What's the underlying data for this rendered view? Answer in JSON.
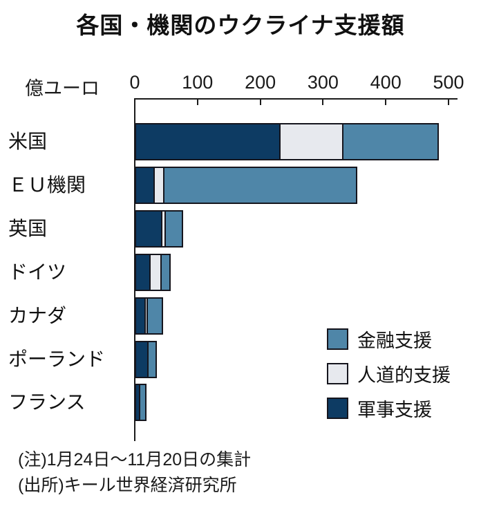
{
  "title": "各国・機関のウクライナ支援額",
  "axis_unit_label": "億ユーロ",
  "notes": {
    "note1": "(注)1月24日～11月20日の集計",
    "note2": "(出所)キール世界経済研究所"
  },
  "colors": {
    "financial": "#4F86A8",
    "humanitarian": "#E7E9EE",
    "military": "#0D3B63",
    "bar_border": "#15151D",
    "axis": "#1A1A1A",
    "text": "#111111",
    "background": "#FFFFFF"
  },
  "chart_data": {
    "type": "bar",
    "orientation": "horizontal",
    "stacked": true,
    "title": "各国・機関のウクライナ支援額",
    "xlabel": "億ユーロ",
    "xlim": [
      0,
      500
    ],
    "x_ticks": [
      0,
      100,
      200,
      300,
      400,
      500
    ],
    "grid": false,
    "categories": [
      "米国",
      "ＥＵ機関",
      "英国",
      "ドイツ",
      "カナダ",
      "ポーランド",
      "フランス"
    ],
    "series": [
      {
        "name": "軍事支援",
        "color_key": "military",
        "values": [
          230,
          30,
          42,
          23,
          15,
          20,
          7
        ]
      },
      {
        "name": "人道的支援",
        "color_key": "humanitarian",
        "values": [
          100,
          15,
          5,
          18,
          3,
          0,
          0
        ]
      },
      {
        "name": "金融支援",
        "color_key": "financial",
        "values": [
          150,
          305,
          25,
          12,
          22,
          11,
          8
        ]
      }
    ],
    "totals": [
      480,
      350,
      72,
      53,
      40,
      31,
      15
    ],
    "legend": [
      {
        "label": "金融支援",
        "color_key": "financial"
      },
      {
        "label": "人道的支援",
        "color_key": "humanitarian"
      },
      {
        "label": "軍事支援",
        "color_key": "military"
      }
    ],
    "legend_position": "right-middle"
  }
}
